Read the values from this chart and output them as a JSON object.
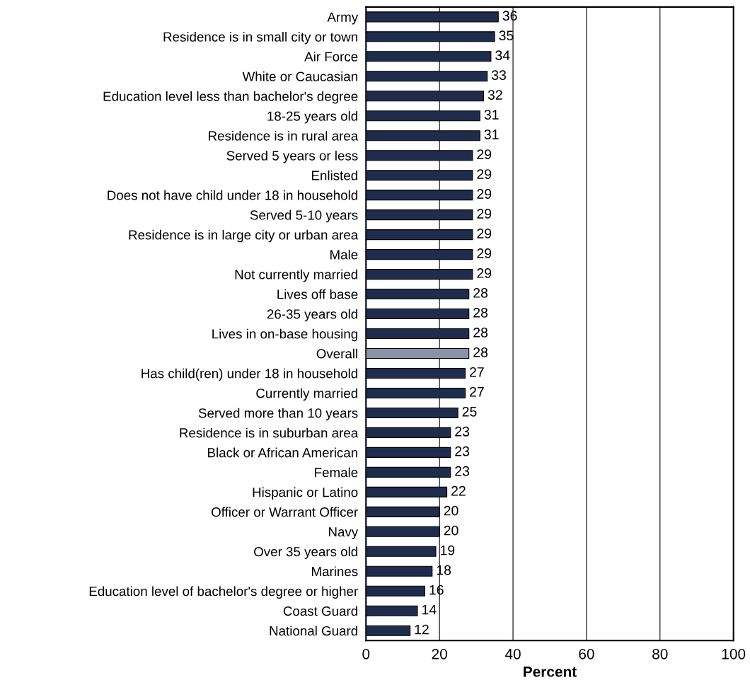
{
  "chart_data": {
    "type": "bar",
    "orientation": "horizontal",
    "xlabel": "Percent",
    "categories": [
      "Army",
      "Residence is in small city or town",
      "Air Force",
      "White or Caucasian",
      "Education level less than bachelor's degree",
      "18-25 years old",
      "Residence is in rural area",
      "Served 5 years or less",
      "Enlisted",
      "Does not have child under 18 in household",
      "Served 5-10 years",
      "Residence is in large city or urban area",
      "Male",
      "Not currently married",
      "Lives off base",
      "26-35 years old",
      "Lives in on-base housing",
      "Overall",
      "Has child(ren) under 18 in household",
      "Currently married",
      "Served more than 10 years",
      "Residence is in suburban area",
      "Black or African American",
      "Female",
      "Hispanic or Latino",
      "Officer or Warrant Officer",
      "Navy",
      "Over 35 years old",
      "Marines",
      "Education level of bachelor's degree or higher",
      "Coast Guard",
      "National Guard"
    ],
    "values": [
      36,
      35,
      34,
      33,
      32,
      31,
      31,
      29,
      29,
      29,
      29,
      29,
      29,
      29,
      28,
      28,
      28,
      28,
      27,
      27,
      25,
      23,
      23,
      23,
      22,
      20,
      20,
      19,
      18,
      16,
      14,
      12
    ],
    "colors": [
      "#1f2d4d",
      "#1f2d4d",
      "#1f2d4d",
      "#1f2d4d",
      "#1f2d4d",
      "#1f2d4d",
      "#1f2d4d",
      "#1f2d4d",
      "#1f2d4d",
      "#1f2d4d",
      "#1f2d4d",
      "#1f2d4d",
      "#1f2d4d",
      "#1f2d4d",
      "#1f2d4d",
      "#1f2d4d",
      "#1f2d4d",
      "#8a93a6",
      "#1f2d4d",
      "#1f2d4d",
      "#1f2d4d",
      "#1f2d4d",
      "#1f2d4d",
      "#1f2d4d",
      "#1f2d4d",
      "#1f2d4d",
      "#1f2d4d",
      "#1f2d4d",
      "#1f2d4d",
      "#1f2d4d",
      "#1f2d4d",
      "#1f2d4d"
    ],
    "data_labels": true,
    "xlim": [
      0,
      100
    ],
    "xticks": [
      0,
      20,
      40,
      60,
      80,
      100
    ],
    "grid": "x",
    "legend": false
  }
}
